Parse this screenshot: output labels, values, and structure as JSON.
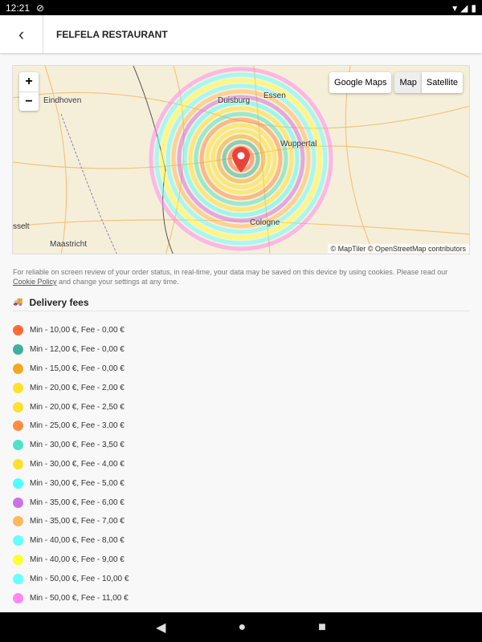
{
  "status": {
    "time": "12:21"
  },
  "header": {
    "title": "FELFELA RESTAURANT"
  },
  "map": {
    "zoom_in": "+",
    "zoom_out": "−",
    "google_maps": "Google Maps",
    "map": "Map",
    "satellite": "Satellite",
    "labels": [
      "Duisburg",
      "Essen",
      "Wuppertal",
      "Cologne",
      "Maastricht",
      "Eindhoven",
      "sselt"
    ],
    "attribution": "© MapTiler © OpenStreetMap contributors",
    "marker_color": "#e8423a"
  },
  "cookie": {
    "text": "For reliable on screen review of your order status, in real-time, your data may be saved on this device by using cookies. Please read our ",
    "link": "Cookie Policy",
    "text2": " and change your settings at any time."
  },
  "delivery": {
    "title": "Delivery fees",
    "icon": "truck-icon",
    "items": [
      {
        "label": "Min - 10,00 €, Fee - 0,00 €",
        "color": "#ff6b35"
      },
      {
        "label": "Min - 12,00 €, Fee - 0,00 €",
        "color": "#3bb09a"
      },
      {
        "label": "Min - 15,00 €, Fee - 0,00 €",
        "color": "#f2a91e"
      },
      {
        "label": "Min - 20,00 €, Fee - 2,00 €",
        "color": "#ffe02a"
      },
      {
        "label": "Min - 20,00 €, Fee - 2,50 €",
        "color": "#ffe02a"
      },
      {
        "label": "Min - 25,00 €, Fee - 3,00 €",
        "color": "#ff8c42"
      },
      {
        "label": "Min - 30,00 €, Fee - 3,50 €",
        "color": "#4de3c3"
      },
      {
        "label": "Min - 30,00 €, Fee - 4,00 €",
        "color": "#ffe02a"
      },
      {
        "label": "Min - 30,00 €, Fee - 5,00 €",
        "color": "#4dffff"
      },
      {
        "label": "Min - 35,00 €, Fee - 6,00 €",
        "color": "#d070e6"
      },
      {
        "label": "Min - 35,00 €, Fee - 7,00 €",
        "color": "#ffb85c"
      },
      {
        "label": "Min - 40,00 €, Fee - 8,00 €",
        "color": "#66ffff"
      },
      {
        "label": "Min - 40,00 €, Fee - 9,00 €",
        "color": "#ffff33"
      },
      {
        "label": "Min - 50,00 €, Fee - 10,00 €",
        "color": "#66ffff"
      },
      {
        "label": "Min - 50,00 €, Fee - 11,00 €",
        "color": "#ff88f0"
      }
    ]
  }
}
